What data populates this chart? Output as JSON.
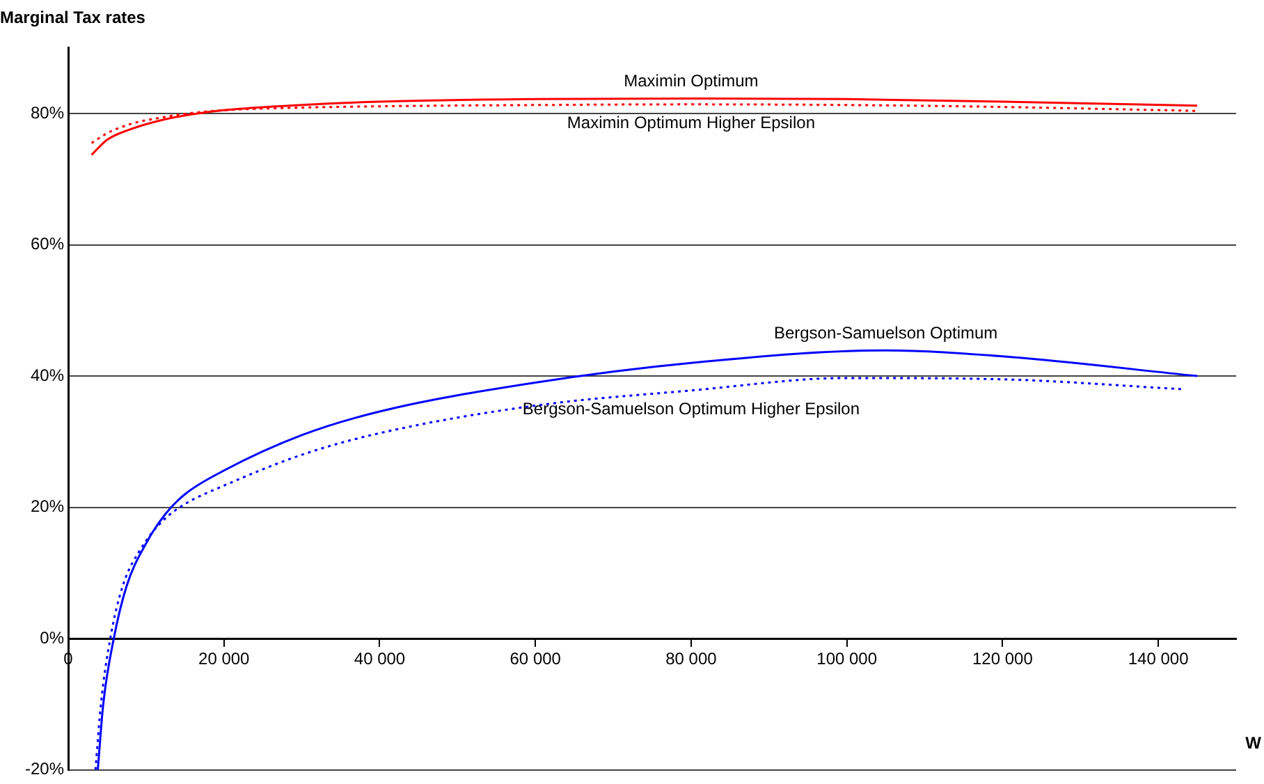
{
  "chart_data": {
    "type": "line",
    "title": "Marginal Tax rates",
    "xlabel": "W",
    "xlim": [
      0,
      150000
    ],
    "xticks": [
      0,
      {
        "value": 20000,
        "label": "20 000"
      },
      {
        "value": 40000,
        "label": "40 000"
      },
      {
        "value": 60000,
        "label": "60 000"
      },
      {
        "value": 80000,
        "label": "80 000"
      },
      {
        "value": 100000,
        "label": "100 000"
      },
      {
        "value": 120000,
        "label": "120 000"
      },
      {
        "value": 140000,
        "label": "140 000"
      }
    ],
    "ylim": [
      -20,
      90
    ],
    "yticks": [
      {
        "value": -20,
        "label": "-20%"
      },
      {
        "value": 0,
        "label": "0%"
      },
      {
        "value": 20,
        "label": "20%"
      },
      {
        "value": 40,
        "label": "40%"
      },
      {
        "value": 60,
        "label": "60%"
      },
      {
        "value": 80,
        "label": "80%"
      }
    ],
    "grid": "y",
    "legend": false,
    "marker": "none",
    "series": [
      {
        "name": "Maximin Optimum",
        "color": "#ff0000",
        "line_style": "solid",
        "x": [
          3000,
          5000,
          8000,
          12000,
          16000,
          20000,
          30000,
          40000,
          60000,
          80000,
          100000,
          120000,
          145000
        ],
        "values": [
          73.7,
          76,
          77.6,
          79,
          79.9,
          80.5,
          81.3,
          81.8,
          82.2,
          82.3,
          82.2,
          81.8,
          81.2
        ]
      },
      {
        "name": "Maximin Optimum Higher Epsilon",
        "color": "#ff0000",
        "line_style": "dotted",
        "x": [
          3000,
          5000,
          8000,
          12000,
          16000,
          20000,
          30000,
          40000,
          60000,
          80000,
          100000,
          120000,
          145000
        ],
        "values": [
          75.5,
          77,
          78.4,
          79.4,
          80.1,
          80.5,
          80.9,
          81.1,
          81.3,
          81.4,
          81.3,
          81.0,
          80.4
        ]
      },
      {
        "name": "Bergson-Samuelson Optimum",
        "color": "#0000ff",
        "line_style": "solid",
        "x": [
          3800,
          4500,
          5850,
          7500,
          10000,
          12500,
          15000,
          20000,
          30000,
          40000,
          60000,
          80000,
          105000,
          120000,
          145000
        ],
        "values": [
          -20,
          -10,
          0,
          8,
          14.5,
          19,
          22,
          25.6,
          31,
          34.6,
          39,
          42,
          43.9,
          43,
          40
        ]
      },
      {
        "name": "Bergson-Samuelson Optimum Higher Epsilon",
        "color": "#0000ff",
        "line_style": "dotted",
        "x": [
          3500,
          4200,
          5400,
          7000,
          9500,
          12200,
          15000,
          20000,
          30000,
          40000,
          60000,
          80000,
          100000,
          120000,
          143000
        ],
        "values": [
          -20,
          -10,
          0,
          8,
          14,
          18,
          20.5,
          23.3,
          28,
          31.3,
          35.5,
          37.8,
          39.7,
          39.5,
          38
        ]
      }
    ]
  }
}
